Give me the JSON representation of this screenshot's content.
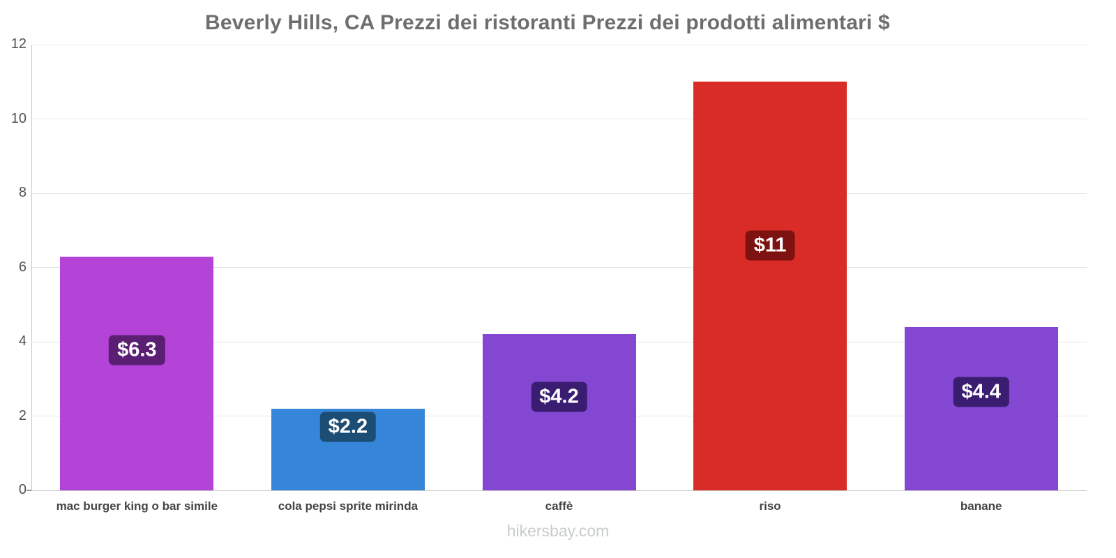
{
  "chart_data": {
    "type": "bar",
    "title": "Beverly Hills, CA Prezzi dei ristoranti Prezzi dei prodotti alimentari $",
    "categories": [
      "mac burger king o bar simile",
      "cola pepsi sprite mirinda",
      "caffè",
      "riso",
      "banane"
    ],
    "values": [
      6.3,
      2.2,
      4.2,
      11,
      4.4
    ],
    "value_labels": [
      "$6.3",
      "$2.2",
      "$4.2",
      "$11",
      "$4.4"
    ],
    "bar_colors": [
      "#b443d8",
      "#3585d8",
      "#8347d2",
      "#da2c26",
      "#8347d2"
    ],
    "badge_colors": [
      "#5a1f73",
      "#1c4d75",
      "#3a1d70",
      "#7e1210",
      "#3a1d70"
    ],
    "ylim": [
      0,
      12
    ],
    "yticks": [
      0,
      2,
      4,
      6,
      8,
      10,
      12
    ],
    "grid": true,
    "legend": false,
    "xlabel": "",
    "ylabel": ""
  },
  "footer": "hikersbay.com",
  "colors": {
    "background": "#ffffff",
    "title": "#6d6e70",
    "axis_label": "#4f5355",
    "grid": "#e7e7e7",
    "axis_line": "#c9c9c9",
    "footer": "#c8cbcd"
  }
}
